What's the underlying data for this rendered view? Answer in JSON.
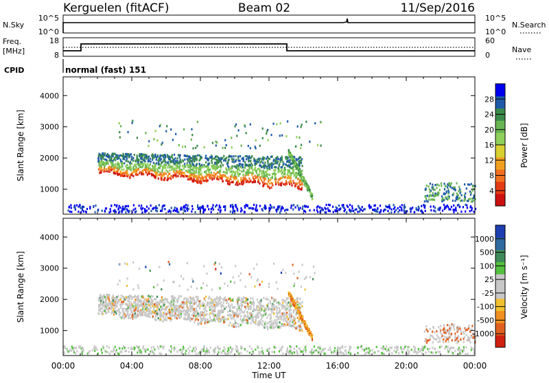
{
  "header": {
    "station": "Kerguelen (fitACF)",
    "beam": "Beam 02",
    "date": "11/Sep/2016"
  },
  "status_panels": {
    "nsky": {
      "left_label": "N.Sky",
      "right_label": "N.Search",
      "tick_top": "10^5",
      "tick_bottom": "10^0"
    },
    "freq": {
      "label_top": "Freq.",
      "label_unit": "[MHz]",
      "ticks": [
        "18",
        "8"
      ],
      "right_ticks": [
        "60",
        "0"
      ],
      "right_label": "Nave"
    },
    "cpid": {
      "label": "CPID",
      "value": "normal (fast) 151"
    }
  },
  "x_axis": {
    "title": "Time UT",
    "ticks": [
      "00:00",
      "04:00",
      "08:00",
      "12:00",
      "16:00",
      "20:00",
      "00:00"
    ]
  },
  "chart_data": [
    {
      "type": "heatmap",
      "name": "power",
      "ylabel": "Slant Range [km]",
      "yticks": [
        "4000",
        "3000",
        "2000",
        "1000"
      ],
      "ylim": [
        200,
        4600
      ],
      "xlim_hours": [
        0,
        24
      ],
      "colorbar": {
        "label": "Power [dB]",
        "ticks": [
          "28",
          "24",
          "20",
          "16",
          "12",
          "8",
          "4"
        ],
        "colors": [
          "#0000ee",
          "#1e5aa8",
          "#3a8a4a",
          "#69b552",
          "#8fd05a",
          "#d8d030",
          "#f0a020",
          "#f07020",
          "#e53b14",
          "#cc1010"
        ]
      }
    },
    {
      "type": "heatmap",
      "name": "velocity",
      "ylabel": "Slant Range [km]",
      "yticks": [
        "4000",
        "3000",
        "2000",
        "1000"
      ],
      "ylim": [
        200,
        4600
      ],
      "xlim_hours": [
        0,
        24
      ],
      "colorbar": {
        "label": "Velocity [m s⁻¹]",
        "ticks": [
          "1000",
          "500",
          "100",
          "25",
          "-25",
          "-100",
          "-500",
          "-1000"
        ],
        "colors": [
          "#1e3fb0",
          "#2f6aa0",
          "#3f8a5a",
          "#55c040",
          "#c8c8c8",
          "#c8c8c8",
          "#f0c030",
          "#f09020",
          "#e06020",
          "#d02010"
        ]
      }
    }
  ]
}
